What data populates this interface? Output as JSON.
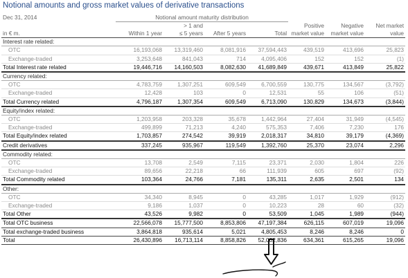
{
  "title": "Notional amounts and gross market values of derivative transactions",
  "header": {
    "date": "Dec 31, 2014",
    "span": "Notional amount maturity distribution",
    "unit": "in € m.",
    "col1": "Within 1 year",
    "col2a": "> 1 and",
    "col2b": "≤ 5 years",
    "col3": "After 5 years",
    "col4": "Total",
    "col5a": "Positive",
    "col5b": "market value",
    "col6a": "Negative",
    "col6b": "market value",
    "col7a": "Net market",
    "col7b": "value"
  },
  "rows": [
    {
      "label": "Interest rate related:",
      "kind": "section",
      "values": [
        "",
        "",
        "",
        "",
        "",
        "",
        ""
      ]
    },
    {
      "label": "OTC",
      "kind": "sub",
      "values": [
        "16,193,068",
        "13,319,460",
        "8,081,916",
        "37,594,443",
        "439,519",
        "413,696",
        "25,823"
      ]
    },
    {
      "label": "Exchange-traded",
      "kind": "sub",
      "values": [
        "3,253,648",
        "841,043",
        "714",
        "4,095,406",
        "152",
        "152",
        "(1)"
      ]
    },
    {
      "label": "Total Interest rate related",
      "kind": "total",
      "values": [
        "19,446,716",
        "14,160,503",
        "8,082,630",
        "41,689,849",
        "439,671",
        "413,849",
        "25,822"
      ]
    },
    {
      "label": "Currency related:",
      "kind": "section",
      "values": [
        "",
        "",
        "",
        "",
        "",
        "",
        ""
      ]
    },
    {
      "label": "OTC",
      "kind": "sub",
      "values": [
        "4,783,759",
        "1,307,251",
        "609,549",
        "6,700,559",
        "130,775",
        "134,567",
        "(3,792)"
      ]
    },
    {
      "label": "Exchange-traded",
      "kind": "sub",
      "values": [
        "12,428",
        "103",
        "0",
        "12,531",
        "55",
        "106",
        "(51)"
      ]
    },
    {
      "label": "Total Currency related",
      "kind": "total",
      "values": [
        "4,796,187",
        "1,307,354",
        "609,549",
        "6,713,090",
        "130,829",
        "134,673",
        "(3,844)"
      ]
    },
    {
      "label": "Equity/index related:",
      "kind": "section",
      "values": [
        "",
        "",
        "",
        "",
        "",
        "",
        ""
      ]
    },
    {
      "label": "OTC",
      "kind": "sub",
      "values": [
        "1,203,958",
        "203,328",
        "35,678",
        "1,442,964",
        "27,404",
        "31,949",
        "(4,545)"
      ]
    },
    {
      "label": "Exchange-traded",
      "kind": "sub",
      "values": [
        "499,899",
        "71,213",
        "4,240",
        "575,353",
        "7,406",
        "7,230",
        "176"
      ]
    },
    {
      "label": "Total Equity/index related",
      "kind": "total",
      "values": [
        "1,703,857",
        "274,542",
        "39,919",
        "2,018,317",
        "34,810",
        "39,179",
        "(4,369)"
      ]
    },
    {
      "label": "Credit derivatives",
      "kind": "single",
      "values": [
        "337,245",
        "935,967",
        "119,549",
        "1,392,760",
        "25,370",
        "23,074",
        "2,296"
      ]
    },
    {
      "label": "Commodity related:",
      "kind": "section",
      "values": [
        "",
        "",
        "",
        "",
        "",
        "",
        ""
      ]
    },
    {
      "label": "OTC",
      "kind": "sub",
      "values": [
        "13,708",
        "2,549",
        "7,115",
        "23,371",
        "2,030",
        "1,804",
        "226"
      ]
    },
    {
      "label": "Exchange-traded",
      "kind": "sub",
      "values": [
        "89,656",
        "22,218",
        "66",
        "111,939",
        "605",
        "697",
        "(92)"
      ]
    },
    {
      "label": "Total Commodity related",
      "kind": "total",
      "values": [
        "103,364",
        "24,766",
        "7,181",
        "135,311",
        "2,635",
        "2,501",
        "134"
      ]
    },
    {
      "label": "Other:",
      "kind": "section",
      "values": [
        "",
        "",
        "",
        "",
        "",
        "",
        ""
      ]
    },
    {
      "label": "OTC",
      "kind": "sub",
      "values": [
        "34,340",
        "8,945",
        "0",
        "43,285",
        "1,017",
        "1,929",
        "(912)"
      ]
    },
    {
      "label": "Exchange-traded",
      "kind": "sub",
      "values": [
        "9,186",
        "1,037",
        "0",
        "10,223",
        "28",
        "60",
        "(32)"
      ]
    },
    {
      "label": "Total Other",
      "kind": "total",
      "values": [
        "43,526",
        "9,982",
        "0",
        "53,509",
        "1,045",
        "1,989",
        "(944)"
      ]
    },
    {
      "label": "Total OTC business",
      "kind": "final",
      "values": [
        "22,566,078",
        "15,777,500",
        "8,853,806",
        "47,197,384",
        "626,115",
        "607,019",
        "19,096"
      ]
    },
    {
      "label": "Total exchange-traded business",
      "kind": "final",
      "values": [
        "3,864,818",
        "935,614",
        "5,021",
        "4,805,453",
        "8,246",
        "8,246",
        "0"
      ]
    },
    {
      "label": "Total",
      "kind": "final",
      "values": [
        "26,430,896",
        "16,713,114",
        "8,858,826",
        "52,002,836",
        "634,361",
        "615,265",
        "19,096"
      ]
    }
  ],
  "annotation": {
    "arrow_color": "#111111"
  }
}
